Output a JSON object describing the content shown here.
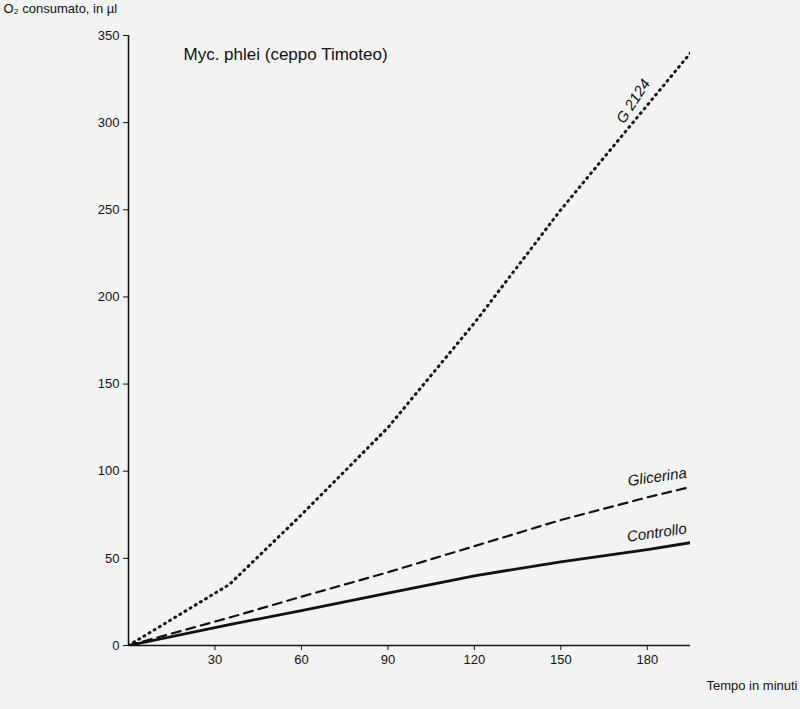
{
  "chart_data": {
    "type": "line",
    "title": "Myc. phlei (ceppo Timoteo)",
    "x_label": "Tempo in minuti",
    "y_label": "O₂ consumato, in µl",
    "x": [
      0,
      35,
      60,
      90,
      120,
      150,
      180,
      195
    ],
    "series": [
      {
        "name": "G 2124",
        "color": "#111111",
        "line_style": "dotted",
        "values": [
          0,
          35,
          75,
          125,
          185,
          250,
          310,
          340
        ]
      },
      {
        "name": "Glicerina",
        "color": "#111111",
        "line_style": "dashed",
        "values": [
          0,
          16,
          28,
          42,
          57,
          72,
          85,
          91
        ]
      },
      {
        "name": "Controllo",
        "color": "#111111",
        "line_style": "solid",
        "values": [
          0,
          12,
          20,
          30,
          40,
          48,
          55,
          59
        ]
      }
    ],
    "xlim": [
      0,
      195
    ],
    "ylim": [
      0,
      350
    ],
    "xticks": [
      30,
      60,
      90,
      120,
      150,
      180
    ],
    "yticks": [
      0,
      50,
      100,
      150,
      200,
      250,
      300,
      350
    ],
    "grid": false
  }
}
